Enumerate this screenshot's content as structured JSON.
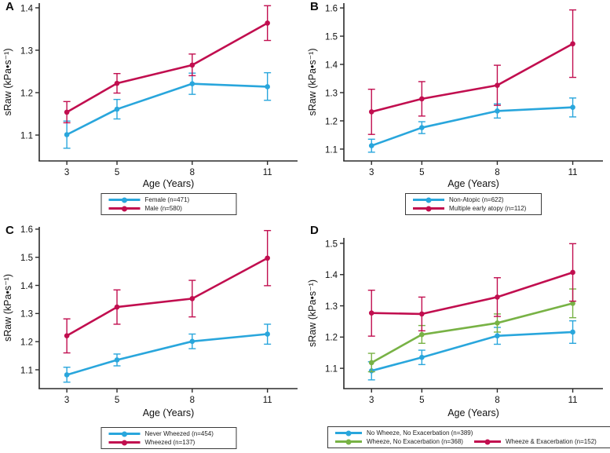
{
  "figure": {
    "background": "#ffffff",
    "axis_color": "#2b2b2b",
    "legend_border_color": "#3a3a3a",
    "panel_letters": [
      "A",
      "B",
      "C",
      "D"
    ]
  },
  "colors": {
    "blue": "#29A6DC",
    "crimson": "#C10E4F",
    "green": "#78B245"
  },
  "chart_data": [
    {
      "type": "line",
      "panel_label": "A",
      "xlabel": "Age (Years)",
      "ylabel": "sRaw (kPa•s⁻¹)",
      "x": [
        3,
        5,
        8,
        11
      ],
      "xtick_labels": [
        "3",
        "5",
        "8",
        "11"
      ],
      "yticks": [
        1.1,
        1.2,
        1.3,
        1.4
      ],
      "xlim": [
        1.9,
        12.2
      ],
      "ylim": [
        1.039,
        1.411
      ],
      "grid": false,
      "legend_position": "bottom",
      "error_bars": true,
      "series": [
        {
          "name": "Female (n=471)",
          "color": "#29A6DC",
          "values": [
            1.101,
            1.161,
            1.221,
            1.214
          ],
          "ci_low": [
            1.069,
            1.138,
            1.196,
            1.182
          ],
          "ci_high": [
            1.133,
            1.184,
            1.246,
            1.247
          ]
        },
        {
          "name": "Male (n=580)",
          "color": "#C10E4F",
          "values": [
            1.154,
            1.222,
            1.265,
            1.364
          ],
          "ci_low": [
            1.129,
            1.199,
            1.24,
            1.323
          ],
          "ci_high": [
            1.179,
            1.245,
            1.291,
            1.405
          ]
        }
      ]
    },
    {
      "type": "line",
      "panel_label": "B",
      "xlabel": "Age (Years)",
      "ylabel": "sRaw (kPa•s⁻¹)",
      "x": [
        3,
        5,
        8,
        11
      ],
      "xtick_labels": [
        "3",
        "5",
        "8",
        "11"
      ],
      "yticks": [
        1.1,
        1.2,
        1.3,
        1.4,
        1.5,
        1.6
      ],
      "xlim": [
        1.9,
        12.2
      ],
      "ylim": [
        1.058,
        1.617
      ],
      "grid": false,
      "legend_position": "bottom",
      "error_bars": true,
      "series": [
        {
          "name": "Non-Atopic (n=622)",
          "color": "#29A6DC",
          "values": [
            1.112,
            1.176,
            1.235,
            1.248
          ],
          "ci_low": [
            1.089,
            1.155,
            1.21,
            1.214
          ],
          "ci_high": [
            1.135,
            1.197,
            1.26,
            1.281
          ]
        },
        {
          "name": "Multiple early atopy (n=112)",
          "color": "#C10E4F",
          "values": [
            1.232,
            1.278,
            1.326,
            1.473
          ],
          "ci_low": [
            1.152,
            1.217,
            1.255,
            1.354
          ],
          "ci_high": [
            1.312,
            1.339,
            1.397,
            1.593
          ]
        }
      ]
    },
    {
      "type": "line",
      "panel_label": "C",
      "xlabel": "Age (Years)",
      "ylabel": "sRaw (kPa•s⁻¹)",
      "x": [
        3,
        5,
        8,
        11
      ],
      "xtick_labels": [
        "3",
        "5",
        "8",
        "11"
      ],
      "yticks": [
        1.1,
        1.2,
        1.3,
        1.4,
        1.5,
        1.6
      ],
      "xlim": [
        1.9,
        12.2
      ],
      "ylim": [
        1.033,
        1.608
      ],
      "grid": false,
      "legend_position": "bottom",
      "error_bars": true,
      "series": [
        {
          "name": "Never Wheezed (n=454)",
          "color": "#29A6DC",
          "values": [
            1.082,
            1.135,
            1.201,
            1.227
          ],
          "ci_low": [
            1.056,
            1.114,
            1.175,
            1.191
          ],
          "ci_high": [
            1.109,
            1.156,
            1.227,
            1.262
          ]
        },
        {
          "name": "Wheezed (n=137)",
          "color": "#C10E4F",
          "values": [
            1.221,
            1.323,
            1.353,
            1.497
          ],
          "ci_low": [
            1.16,
            1.262,
            1.288,
            1.399
          ],
          "ci_high": [
            1.281,
            1.384,
            1.418,
            1.595
          ]
        }
      ]
    },
    {
      "type": "line",
      "panel_label": "D",
      "xlabel": "Age (Years)",
      "ylabel": "sRaw (kPa•s⁻¹)",
      "x": [
        3,
        5,
        8,
        11
      ],
      "xtick_labels": [
        "3",
        "5",
        "8",
        "11"
      ],
      "yticks": [
        1.1,
        1.2,
        1.3,
        1.4,
        1.5
      ],
      "xlim": [
        1.9,
        12.2
      ],
      "ylim": [
        1.035,
        1.5175
      ],
      "grid": false,
      "legend_position": "bottom",
      "error_bars": true,
      "series": [
        {
          "name": "No Wheeze, No Exacerbation (n=389)",
          "color": "#29A6DC",
          "values": [
            1.092,
            1.135,
            1.204,
            1.216
          ],
          "ci_low": [
            1.063,
            1.112,
            1.177,
            1.18
          ],
          "ci_high": [
            1.121,
            1.158,
            1.231,
            1.252
          ]
        },
        {
          "name": "Wheeze, No Exacerbation (n=368)",
          "color": "#78B245",
          "values": [
            1.118,
            1.208,
            1.245,
            1.308
          ],
          "ci_low": [
            1.089,
            1.18,
            1.216,
            1.262
          ],
          "ci_high": [
            1.148,
            1.237,
            1.274,
            1.354
          ]
        },
        {
          "name": "Wheeze & Exacerbation (n=152)",
          "color": "#C10E4F",
          "values": [
            1.277,
            1.274,
            1.328,
            1.407
          ],
          "ci_low": [
            1.203,
            1.22,
            1.266,
            1.315
          ],
          "ci_high": [
            1.35,
            1.328,
            1.39,
            1.499
          ]
        }
      ]
    }
  ]
}
